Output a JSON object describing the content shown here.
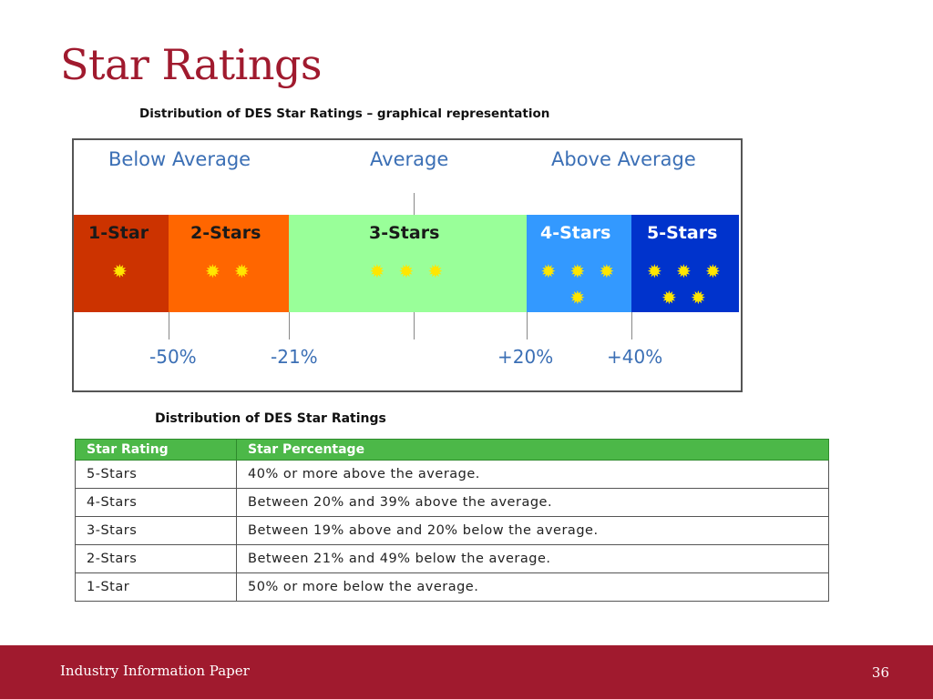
{
  "slide": {
    "title": "Star Ratings",
    "footer_text": "Industry Information Paper",
    "page_number": "36"
  },
  "diagram": {
    "caption": "Distribution of DES Star Ratings – graphical representation",
    "categories": [
      "Below Average",
      "Average",
      "Above Average"
    ],
    "bands": [
      {
        "label": "1-Star",
        "stars": 1,
        "color": "#cc3300",
        "text_color": "#1a1a1a"
      },
      {
        "label": "2-Stars",
        "stars": 2,
        "color": "#ff6600",
        "text_color": "#1a1a1a"
      },
      {
        "label": "3-Stars",
        "stars": 3,
        "color": "#99ff99",
        "text_color": "#1a1a1a"
      },
      {
        "label": "4-Stars",
        "stars": 4,
        "color": "#3399ff",
        "text_color": "#ffffff"
      },
      {
        "label": "5-Stars",
        "stars": 5,
        "color": "#0033cc",
        "text_color": "#ffffff"
      }
    ],
    "thresholds": [
      "-50%",
      "-21%",
      "+20%",
      "+40%"
    ]
  },
  "table": {
    "caption": "Distribution of DES Star Ratings",
    "headers": [
      "Star Rating",
      "Star Percentage"
    ],
    "rows": [
      [
        "5-Stars",
        "40% or more above the average."
      ],
      [
        "4-Stars",
        "Between 20% and 39% above the average."
      ],
      [
        "3-Stars",
        "Between 19% above and 20% below the average."
      ],
      [
        "2-Stars",
        "Between 21% and 49% below the average."
      ],
      [
        "1-Star",
        "50% or more below the average."
      ]
    ]
  }
}
